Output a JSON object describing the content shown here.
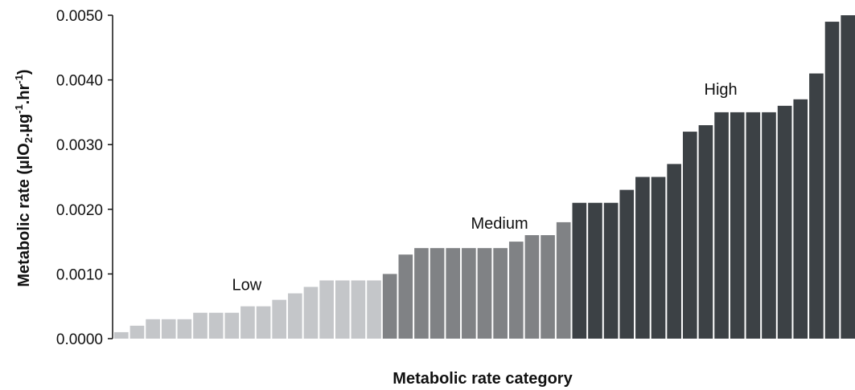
{
  "chart_data": {
    "type": "bar",
    "xlabel": "Metabolic rate category",
    "ylabel": {
      "main": "Metabolic rate (µlO",
      "sub": "2",
      "mid": ".µg",
      "sup1": "-1",
      "mid2": ".hr",
      "sup2": "-1",
      "end": ")"
    },
    "ylim": [
      0,
      0.005
    ],
    "yticks": [
      "0.0000",
      "0.0010",
      "0.0020",
      "0.0030",
      "0.0040",
      "0.0050"
    ],
    "grid": false,
    "groups": [
      {
        "name": "Low",
        "color": "#c4c6c9",
        "values": [
          0.0001,
          0.0002,
          0.0003,
          0.0003,
          0.0003,
          0.0004,
          0.0004,
          0.0004,
          0.0005,
          0.0005,
          0.0006,
          0.0007,
          0.0008,
          0.0009,
          0.0009,
          0.0009,
          0.0009
        ]
      },
      {
        "name": "Medium",
        "color": "#808285",
        "values": [
          0.001,
          0.0013,
          0.0014,
          0.0014,
          0.0014,
          0.0014,
          0.0014,
          0.0014,
          0.0015,
          0.0016,
          0.0016,
          0.0018
        ]
      },
      {
        "name": "High",
        "color": "#3c4145",
        "values": [
          0.0021,
          0.0021,
          0.0021,
          0.0023,
          0.0025,
          0.0025,
          0.0027,
          0.0032,
          0.0033,
          0.0035,
          0.0035,
          0.0035,
          0.0035,
          0.0036,
          0.0037,
          0.0041,
          0.0049,
          0.005
        ]
      }
    ]
  }
}
